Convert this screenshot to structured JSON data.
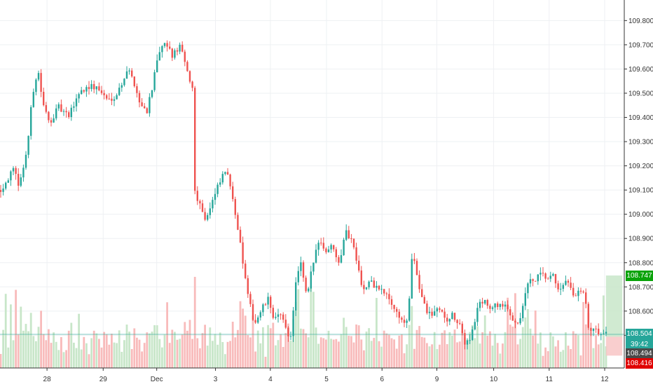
{
  "chart_data": {
    "type": "candlestick",
    "y_axis": {
      "ticks": [
        "109.800",
        "109.700",
        "109.600",
        "109.500",
        "109.400",
        "109.300",
        "109.200",
        "109.100",
        "109.000",
        "108.900",
        "108.800",
        "108.700",
        "108.600",
        "108.500"
      ],
      "ylim": [
        108.365,
        109.885
      ]
    },
    "x_axis": {
      "ticks": [
        {
          "label": "28",
          "t": 0.072
        },
        {
          "label": "29",
          "t": 0.158
        },
        {
          "label": "Dec",
          "t": 0.24
        },
        {
          "label": "3",
          "t": 0.33
        },
        {
          "label": "4",
          "t": 0.414
        },
        {
          "label": "5",
          "t": 0.5
        },
        {
          "label": "6",
          "t": 0.585
        },
        {
          "label": "9",
          "t": 0.669
        },
        {
          "label": "10",
          "t": 0.756
        },
        {
          "label": "11",
          "t": 0.841
        },
        {
          "label": "12",
          "t": 0.926
        }
      ]
    },
    "anchors": [
      {
        "t": 0.0,
        "p": 109.1
      },
      {
        "t": 0.02,
        "p": 109.18
      },
      {
        "t": 0.03,
        "p": 109.12
      },
      {
        "t": 0.042,
        "p": 109.28
      },
      {
        "t": 0.05,
        "p": 109.5
      },
      {
        "t": 0.058,
        "p": 109.6
      },
      {
        "t": 0.066,
        "p": 109.45
      },
      {
        "t": 0.075,
        "p": 109.38
      },
      {
        "t": 0.09,
        "p": 109.44
      },
      {
        "t": 0.105,
        "p": 109.4
      },
      {
        "t": 0.12,
        "p": 109.5
      },
      {
        "t": 0.135,
        "p": 109.53
      },
      {
        "t": 0.15,
        "p": 109.52
      },
      {
        "t": 0.165,
        "p": 109.47
      },
      {
        "t": 0.18,
        "p": 109.5
      },
      {
        "t": 0.195,
        "p": 109.6
      },
      {
        "t": 0.205,
        "p": 109.55
      },
      {
        "t": 0.215,
        "p": 109.45
      },
      {
        "t": 0.225,
        "p": 109.43
      },
      {
        "t": 0.235,
        "p": 109.55
      },
      {
        "t": 0.245,
        "p": 109.68
      },
      {
        "t": 0.255,
        "p": 109.7
      },
      {
        "t": 0.265,
        "p": 109.65
      },
      {
        "t": 0.275,
        "p": 109.7
      },
      {
        "t": 0.285,
        "p": 109.6
      },
      {
        "t": 0.295,
        "p": 109.52
      },
      {
        "t": 0.298,
        "p": 109.1
      },
      {
        "t": 0.305,
        "p": 109.05
      },
      {
        "t": 0.315,
        "p": 108.98
      },
      {
        "t": 0.325,
        "p": 109.05
      },
      {
        "t": 0.335,
        "p": 109.12
      },
      {
        "t": 0.345,
        "p": 109.18
      },
      {
        "t": 0.355,
        "p": 109.1
      },
      {
        "t": 0.362,
        "p": 108.98
      },
      {
        "t": 0.372,
        "p": 108.8
      },
      {
        "t": 0.38,
        "p": 108.65
      },
      {
        "t": 0.39,
        "p": 108.55
      },
      {
        "t": 0.4,
        "p": 108.6
      },
      {
        "t": 0.41,
        "p": 108.65
      },
      {
        "t": 0.42,
        "p": 108.57
      },
      {
        "t": 0.428,
        "p": 108.58
      },
      {
        "t": 0.436,
        "p": 108.55
      },
      {
        "t": 0.445,
        "p": 108.48
      },
      {
        "t": 0.452,
        "p": 108.7
      },
      {
        "t": 0.46,
        "p": 108.8
      },
      {
        "t": 0.47,
        "p": 108.65
      },
      {
        "t": 0.478,
        "p": 108.78
      },
      {
        "t": 0.488,
        "p": 108.9
      },
      {
        "t": 0.498,
        "p": 108.85
      },
      {
        "t": 0.51,
        "p": 108.87
      },
      {
        "t": 0.52,
        "p": 108.8
      },
      {
        "t": 0.528,
        "p": 108.93
      },
      {
        "t": 0.538,
        "p": 108.9
      },
      {
        "t": 0.548,
        "p": 108.8
      },
      {
        "t": 0.556,
        "p": 108.68
      },
      {
        "t": 0.566,
        "p": 108.72
      },
      {
        "t": 0.576,
        "p": 108.7
      },
      {
        "t": 0.586,
        "p": 108.68
      },
      {
        "t": 0.596,
        "p": 108.65
      },
      {
        "t": 0.606,
        "p": 108.6
      },
      {
        "t": 0.616,
        "p": 108.56
      },
      {
        "t": 0.624,
        "p": 108.55
      },
      {
        "t": 0.632,
        "p": 108.85
      },
      {
        "t": 0.642,
        "p": 108.7
      },
      {
        "t": 0.652,
        "p": 108.6
      },
      {
        "t": 0.662,
        "p": 108.58
      },
      {
        "t": 0.672,
        "p": 108.62
      },
      {
        "t": 0.682,
        "p": 108.56
      },
      {
        "t": 0.692,
        "p": 108.58
      },
      {
        "t": 0.702,
        "p": 108.55
      },
      {
        "t": 0.712,
        "p": 108.47
      },
      {
        "t": 0.722,
        "p": 108.5
      },
      {
        "t": 0.732,
        "p": 108.62
      },
      {
        "t": 0.742,
        "p": 108.65
      },
      {
        "t": 0.752,
        "p": 108.6
      },
      {
        "t": 0.762,
        "p": 108.63
      },
      {
        "t": 0.772,
        "p": 108.62
      },
      {
        "t": 0.782,
        "p": 108.58
      },
      {
        "t": 0.792,
        "p": 108.55
      },
      {
        "t": 0.8,
        "p": 108.6
      },
      {
        "t": 0.808,
        "p": 108.72
      },
      {
        "t": 0.818,
        "p": 108.72
      },
      {
        "t": 0.828,
        "p": 108.75
      },
      {
        "t": 0.838,
        "p": 108.73
      },
      {
        "t": 0.848,
        "p": 108.74
      },
      {
        "t": 0.858,
        "p": 108.68
      },
      {
        "t": 0.868,
        "p": 108.72
      },
      {
        "t": 0.878,
        "p": 108.66
      },
      {
        "t": 0.888,
        "p": 108.68
      },
      {
        "t": 0.896,
        "p": 108.66
      },
      {
        "t": 0.902,
        "p": 108.5
      },
      {
        "t": 0.91,
        "p": 108.52
      },
      {
        "t": 0.918,
        "p": 108.51
      },
      {
        "t": 0.93,
        "p": 108.5
      }
    ],
    "volume": {
      "max": 100
    },
    "price_labels": [
      {
        "name": "target-price",
        "value": "108.747",
        "price": 108.747,
        "color": "#0aa30a"
      },
      {
        "name": "current-price",
        "value": "108.504",
        "price": 108.504,
        "color": "#26a69a"
      },
      {
        "name": "countdown",
        "value": "39:42",
        "price": 108.463,
        "color": "#26a69a"
      },
      {
        "name": "entry-price",
        "value": "108.494",
        "price": 108.425,
        "color": "#4a4a4a"
      },
      {
        "name": "stop-price",
        "value": "108.416",
        "price": 108.385,
        "color": "#e00000"
      }
    ],
    "position": {
      "entry": 108.494,
      "target": 108.747,
      "stop": 108.416,
      "t_start": 0.928,
      "t_end": 0.953
    },
    "colors": {
      "up": "#26a69a",
      "down": "#ef5350",
      "up_volume": "#c8e6c9",
      "down_volume": "#f8bbbb",
      "grid": "#eef0f3",
      "axis": "#333333",
      "target_zone": "#c8e6c9",
      "stop_zone": "#f8c5c5",
      "price_line": "#26a69a"
    }
  }
}
